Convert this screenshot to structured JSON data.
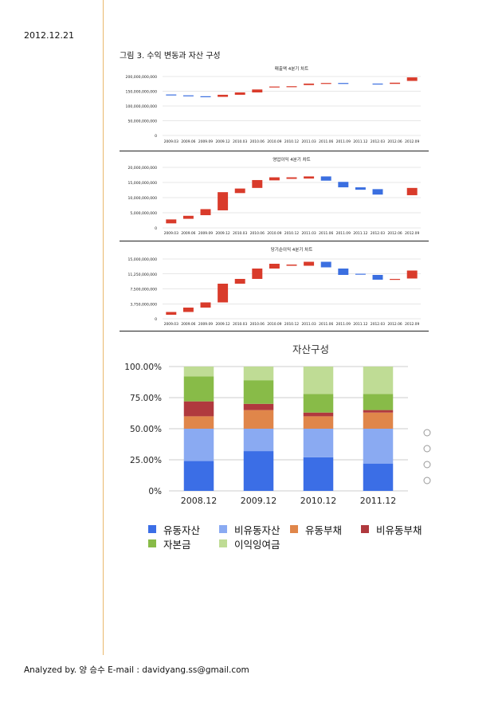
{
  "header": {
    "date": "2012.12.21"
  },
  "figure": {
    "caption": "그림 3. 수익 변동과 자산 구성"
  },
  "footer": {
    "text": "Analyzed by. 양 승수 E-mail : davidyang.ss@gmail.com"
  },
  "colors": {
    "up": "#d93b2b",
    "down": "#3b6fe0",
    "accent_line": "#e9b86c"
  },
  "chart_data": [
    {
      "type": "bar",
      "subtype": "waterfall",
      "title": "매출액 4분기 차트",
      "categories": [
        "2009.03",
        "2009.06",
        "2009.09",
        "2009.12",
        "2010.03",
        "2010.06",
        "2010.09",
        "2010.12",
        "2011.03",
        "2011.06",
        "2011.09",
        "2011.12",
        "2012.03",
        "2012.06",
        "2012.09"
      ],
      "ranges": [
        [
          139000000000,
          138000000000
        ],
        [
          136000000000,
          134000000000
        ],
        [
          133000000000,
          131000000000
        ],
        [
          131000000000,
          138000000000
        ],
        [
          138000000000,
          146000000000
        ],
        [
          146000000000,
          156000000000
        ],
        [
          163000000000,
          166000000000
        ],
        [
          166000000000,
          167000000000
        ],
        [
          171000000000,
          176000000000
        ],
        [
          177000000000,
          178000000000
        ],
        [
          178000000000,
          177000000000
        ],
        [
          null,
          null
        ],
        [
          176000000000,
          175000000000
        ],
        [
          175000000000,
          179000000000
        ],
        [
          185000000000,
          197000000000
        ]
      ],
      "yticks": [
        "200,000,000,000",
        "150,000,000,000",
        "100,000,000,000",
        "50,000,000,000",
        "0"
      ],
      "ylim": [
        0,
        200000000000
      ]
    },
    {
      "type": "bar",
      "subtype": "waterfall",
      "title": "영업이익 4분기 차트",
      "categories": [
        "2009.03",
        "2009.06",
        "2009.09",
        "2009.12",
        "2010.03",
        "2010.06",
        "2010.09",
        "2010.12",
        "2011.03",
        "2011.06",
        "2011.09",
        "2011.12",
        "2012.03",
        "2012.06",
        "2012.09"
      ],
      "ranges": [
        [
          1500000000,
          2800000000
        ],
        [
          3000000000,
          4000000000
        ],
        [
          4200000000,
          6200000000
        ],
        [
          5800000000,
          11800000000
        ],
        [
          11500000000,
          13000000000
        ],
        [
          13200000000,
          15800000000
        ],
        [
          15700000000,
          16700000000
        ],
        [
          16200000000,
          16700000000
        ],
        [
          16300000000,
          17000000000
        ],
        [
          17000000000,
          15600000000
        ],
        [
          15200000000,
          13400000000
        ],
        [
          13400000000,
          12600000000
        ],
        [
          12800000000,
          11000000000
        ],
        [
          null,
          null
        ],
        [
          10800000000,
          13200000000
        ]
      ],
      "yticks": [
        "20,000,000,000",
        "15,000,000,000",
        "10,000,000,000",
        "5,000,000,000",
        "0"
      ],
      "ylim": [
        0,
        20000000000
      ]
    },
    {
      "type": "bar",
      "subtype": "waterfall",
      "title": "당기순이익 4분기 차트",
      "categories": [
        "2009.03",
        "2009.06",
        "2009.09",
        "2009.12",
        "2010.03",
        "2010.06",
        "2010.09",
        "2010.12",
        "2011.03",
        "2011.06",
        "2011.09",
        "2011.12",
        "2012.03",
        "2012.06",
        "2012.09"
      ],
      "ranges": [
        [
          1000000000,
          1700000000
        ],
        [
          1700000000,
          2800000000
        ],
        [
          2800000000,
          4100000000
        ],
        [
          4100000000,
          8800000000
        ],
        [
          8800000000,
          10000000000
        ],
        [
          10000000000,
          12600000000
        ],
        [
          12600000000,
          13800000000
        ],
        [
          13300000000,
          13600000000
        ],
        [
          13300000000,
          14300000000
        ],
        [
          14300000000,
          12900000000
        ],
        [
          12600000000,
          11000000000
        ],
        [
          11300000000,
          11100000000
        ],
        [
          11000000000,
          9800000000
        ],
        [
          9800000000,
          10000000000
        ],
        [
          10100000000,
          12100000000
        ]
      ],
      "yticks": [
        "15,000,000,000",
        "11,250,000,000",
        "7,500,000,000",
        "3,750,000,000",
        "0"
      ],
      "ylim": [
        0,
        15000000000
      ]
    },
    {
      "type": "bar",
      "subtype": "stacked-percent",
      "title": "자산구성",
      "categories": [
        "2008.12",
        "2009.12",
        "2010.12",
        "2011.12"
      ],
      "yticks": [
        "100.00%",
        "75.00%",
        "50.00%",
        "25.00%",
        "0%"
      ],
      "ylim": [
        0,
        100
      ],
      "series": [
        {
          "name": "유동자산",
          "color": "#3b6ee6",
          "values": [
            24,
            32,
            27,
            22
          ]
        },
        {
          "name": "비유동자산",
          "color": "#8aaaf2",
          "values": [
            26,
            18,
            23,
            28
          ]
        },
        {
          "name": "유동부채",
          "color": "#e0864a",
          "values": [
            10,
            15,
            10,
            13
          ]
        },
        {
          "name": "비유동부채",
          "color": "#b0393e",
          "values": [
            12,
            5,
            3,
            2
          ]
        },
        {
          "name": "자본금",
          "color": "#88bb48",
          "values": [
            20,
            19,
            15,
            13
          ]
        },
        {
          "name": "이익잉여금",
          "color": "#bfdc95",
          "values": [
            8,
            11,
            22,
            22
          ]
        }
      ],
      "legend_rows": [
        [
          "유동자산",
          "비유동자산",
          "유동부채",
          "비유동부채"
        ],
        [
          "자본금",
          "이익잉여금"
        ]
      ]
    }
  ]
}
